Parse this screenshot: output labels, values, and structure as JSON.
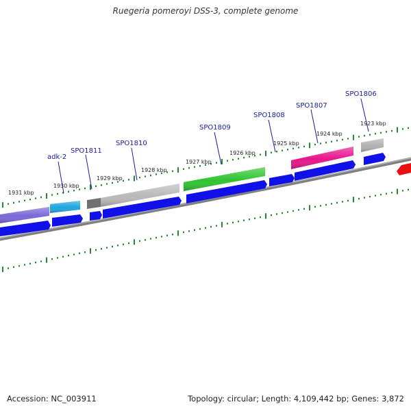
{
  "title": "Ruegeria pomeroyi DSS-3, complete genome",
  "footer": {
    "accession": "Accession: NC_003911",
    "summary": "Topology: circular; Length: 4,109,442 bp; Genes: 3,872"
  },
  "kbp_labels": [
    "1931 kbp",
    "1930 kbp",
    "1929 kbp",
    "1928 kbp",
    "1927 kbp",
    "1926 kbp",
    "1925 kbp",
    "1924 kbp",
    "1923 kbp"
  ],
  "genes": [
    {
      "name": "",
      "color": "#7b68d8"
    },
    {
      "name": "adk-2",
      "color": "#1ea5e0"
    },
    {
      "name": "SPO1811",
      "color": "#707070"
    },
    {
      "name": "SPO1810",
      "color": "#b9b9b9"
    },
    {
      "name": "SPO1809",
      "color": "#2fc42f"
    },
    {
      "name": "SPO1808",
      "color": "#1010e8"
    },
    {
      "name": "SPO1807",
      "color": "#e8148c"
    },
    {
      "name": "SPO1806",
      "color": "#b0b0b0"
    },
    {
      "name": "",
      "color": "#e81010"
    }
  ],
  "colors": {
    "cds": "#1010e8",
    "tick": "#228b22",
    "backbone": "#808080",
    "gene_label": "#1a1aa8"
  }
}
